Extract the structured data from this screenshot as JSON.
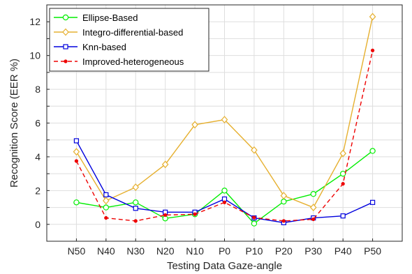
{
  "chart_data": {
    "type": "line",
    "title": "",
    "xlabel": "Testing Data Gaze-angle",
    "ylabel": "Recognition Score (EER %)",
    "categories": [
      "N50",
      "N40",
      "N30",
      "N20",
      "N10",
      "P0",
      "P10",
      "P20",
      "P30",
      "P40",
      "P50"
    ],
    "ylim": [
      -1,
      13
    ],
    "yticks": [
      0,
      2,
      4,
      6,
      8,
      10,
      12
    ],
    "grid": true,
    "legend_position": "top-left",
    "series": [
      {
        "name": "Ellipse-Based",
        "values": [
          1.3,
          1.0,
          1.3,
          0.35,
          0.6,
          2.0,
          0.05,
          1.35,
          1.8,
          3.0,
          4.35
        ],
        "color": "#00ee00",
        "marker": "circle",
        "dash": "solid"
      },
      {
        "name": "Integro-differential-based",
        "values": [
          4.3,
          1.4,
          2.2,
          3.55,
          5.9,
          6.2,
          4.4,
          1.7,
          1.0,
          4.2,
          12.3
        ],
        "color": "#e6b030",
        "marker": "diamond",
        "dash": "solid"
      },
      {
        "name": "Knn-based",
        "values": [
          4.95,
          1.75,
          0.95,
          0.72,
          0.72,
          1.5,
          0.38,
          0.1,
          0.38,
          0.5,
          1.3
        ],
        "color": "#0000dd",
        "marker": "square",
        "dash": "solid"
      },
      {
        "name": "Improved-heterogeneous",
        "values": [
          3.75,
          0.38,
          0.2,
          0.55,
          0.6,
          1.3,
          0.4,
          0.2,
          0.3,
          2.4,
          10.3
        ],
        "color": "#ee0000",
        "marker": "dot",
        "dash": "dashed"
      }
    ]
  }
}
